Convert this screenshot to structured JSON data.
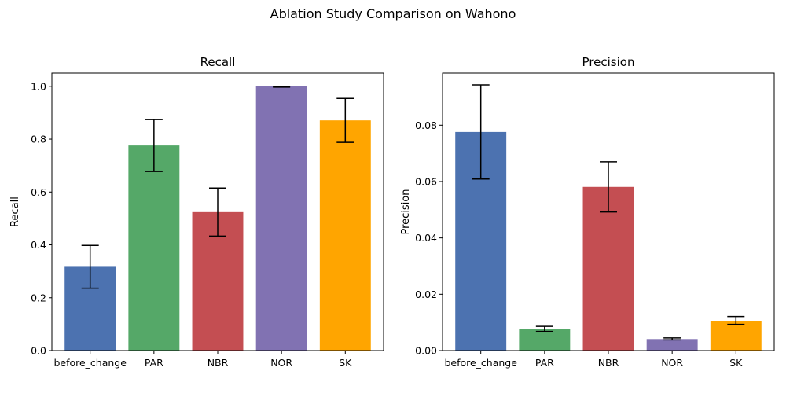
{
  "figure": {
    "suptitle": "Ablation Study Comparison on Wahono"
  },
  "chart_data": [
    {
      "type": "bar",
      "title": "Recall",
      "xlabel": "",
      "ylabel": "Recall",
      "categories": [
        "before_change",
        "PAR",
        "NBR",
        "NOR",
        "SK"
      ],
      "values": [
        0.317,
        0.776,
        0.524,
        1.0,
        0.871
      ],
      "error_low": [
        0.236,
        0.678,
        0.433,
        0.997,
        0.788
      ],
      "error_high": [
        0.398,
        0.874,
        0.615,
        1.0,
        0.954
      ],
      "colors": [
        "#4c72b0",
        "#55a868",
        "#c44e52",
        "#8172b2",
        "#ffa500"
      ],
      "ylim": [
        0,
        1.05
      ],
      "yticks": [
        0.0,
        0.2,
        0.4,
        0.6,
        0.8,
        1.0
      ],
      "ytick_labels": [
        "0.0",
        "0.2",
        "0.4",
        "0.6",
        "0.8",
        "1.0"
      ],
      "grid": false
    },
    {
      "type": "bar",
      "title": "Precision",
      "xlabel": "",
      "ylabel": "Precision",
      "categories": [
        "before_change",
        "PAR",
        "NBR",
        "NOR",
        "SK"
      ],
      "values": [
        0.0776,
        0.0077,
        0.0581,
        0.0041,
        0.0106
      ],
      "error_low": [
        0.0609,
        0.0068,
        0.0492,
        0.0038,
        0.0093
      ],
      "error_high": [
        0.0943,
        0.0086,
        0.067,
        0.0045,
        0.0121
      ],
      "colors": [
        "#4c72b0",
        "#55a868",
        "#c44e52",
        "#8172b2",
        "#ffa500"
      ],
      "ylim": [
        0,
        0.0985
      ],
      "yticks": [
        0.0,
        0.02,
        0.04,
        0.06,
        0.08
      ],
      "ytick_labels": [
        "0.00",
        "0.02",
        "0.04",
        "0.06",
        "0.08"
      ],
      "grid": false
    }
  ]
}
